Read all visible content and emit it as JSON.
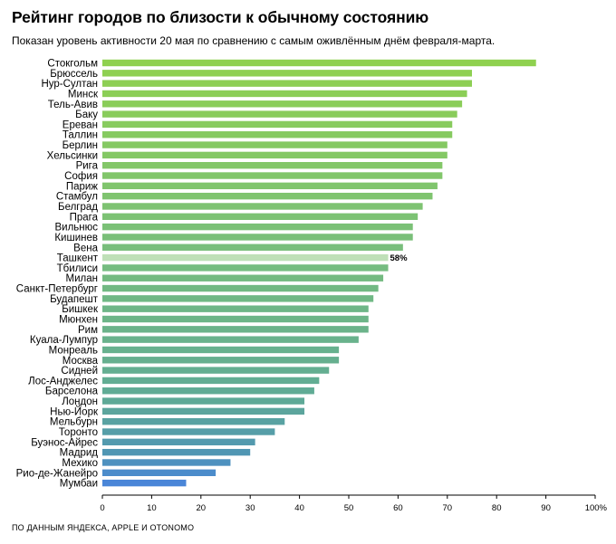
{
  "header": {
    "title": "Рейтинг городов по близости к обычному состоянию",
    "subtitle": "Показан уровень активности 20 мая по сравнению с самым оживлённым днём февраля-марта."
  },
  "footer": {
    "source": "ПО ДАННЫМ ЯНДЕКСА, APPLE И OTONOMO"
  },
  "chart_data": {
    "type": "bar",
    "orientation": "horizontal",
    "title": "Рейтинг городов по близости к обычному состоянию",
    "subtitle": "Показан уровень активности 20 мая по сравнению с самым оживлённым днём февраля-марта.",
    "xlabel": "",
    "ylabel": "",
    "xlim": [
      0,
      100
    ],
    "x_ticks": [
      "0",
      "10",
      "20",
      "30",
      "40",
      "50",
      "60",
      "70",
      "80",
      "90",
      "100%"
    ],
    "x_tick_values": [
      0,
      10,
      20,
      30,
      40,
      50,
      60,
      70,
      80,
      90,
      100
    ],
    "grid": false,
    "categories": [
      "Стокгольм",
      "Брюссель",
      "Нур-Султан",
      "Минск",
      "Тель-Авив",
      "Баку",
      "Ереван",
      "Таллин",
      "Берлин",
      "Хельсинки",
      "Рига",
      "София",
      "Париж",
      "Стамбул",
      "Белград",
      "Прага",
      "Вильнюс",
      "Кишинев",
      "Вена",
      "Ташкент",
      "Тбилиси",
      "Милан",
      "Санкт-Петербург",
      "Будапешт",
      "Бишкек",
      "Мюнхен",
      "Рим",
      "Куала-Лумпур",
      "Монреаль",
      "Москва",
      "Сидней",
      "Лос-Анджелес",
      "Барселона",
      "Лондон",
      "Нью-Йорк",
      "Мельбурн",
      "Торонто",
      "Буэнос-Айрес",
      "Мадрид",
      "Мехико",
      "Рио-де-Жанейро",
      "Мумбаи"
    ],
    "values": [
      88,
      75,
      75,
      74,
      73,
      72,
      71,
      71,
      70,
      70,
      69,
      69,
      68,
      67,
      65,
      64,
      63,
      63,
      61,
      58,
      58,
      57,
      56,
      55,
      54,
      54,
      54,
      52,
      48,
      48,
      46,
      44,
      43,
      41,
      41,
      37,
      35,
      31,
      30,
      26,
      23,
      17
    ],
    "highlight": {
      "category": "Ташкент",
      "label": "58%",
      "color": "#bfe0b8"
    },
    "colors": {
      "top": "#8fd14f",
      "middle": "#5fb08f",
      "bottom": "#4a86d8",
      "highlight": "#bfe0b8",
      "axis": "#000000"
    }
  }
}
